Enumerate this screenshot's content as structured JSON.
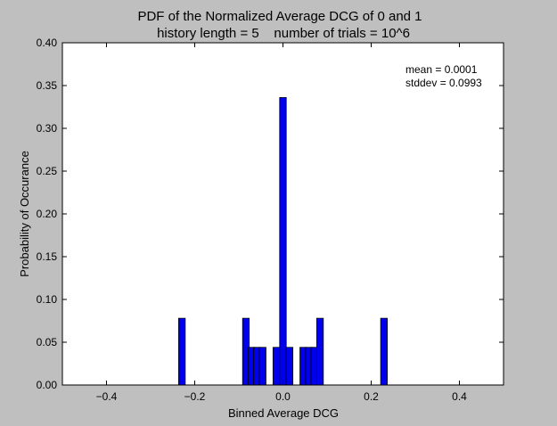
{
  "chart_data": {
    "type": "bar",
    "title": "PDF of the Normalized Average DCG of 0 and 1",
    "subtitle": "history length = 5    number of trials = 10^6",
    "xlabel": "Binned Average DCG",
    "ylabel": "Probability of Occurance",
    "xlim": [
      -0.5,
      0.5
    ],
    "ylim": [
      0.0,
      0.4
    ],
    "bin_width": 0.015,
    "x_ticks": [
      -0.4,
      -0.2,
      0.0,
      0.2,
      0.4
    ],
    "x_tick_labels": [
      "−0.4",
      "−0.2",
      "0.0",
      "0.2",
      "0.4"
    ],
    "y_ticks": [
      0.0,
      0.05,
      0.1,
      0.15,
      0.2,
      0.25,
      0.3,
      0.35,
      0.4
    ],
    "y_tick_labels": [
      "0.00",
      "0.05",
      "0.10",
      "0.15",
      "0.20",
      "0.25",
      "0.30",
      "0.35",
      "0.40"
    ],
    "grid": false,
    "bar_color": "#0000ee",
    "bar_edge_color": "#000000",
    "bins": [
      {
        "x": -0.229,
        "value": 0.078
      },
      {
        "x": -0.084,
        "value": 0.078
      },
      {
        "x": -0.071,
        "value": 0.044
      },
      {
        "x": -0.059,
        "value": 0.044
      },
      {
        "x": -0.046,
        "value": 0.044
      },
      {
        "x": -0.015,
        "value": 0.044
      },
      {
        "x": 0.0,
        "value": 0.336
      },
      {
        "x": 0.015,
        "value": 0.044
      },
      {
        "x": 0.046,
        "value": 0.044
      },
      {
        "x": 0.059,
        "value": 0.044
      },
      {
        "x": 0.071,
        "value": 0.044
      },
      {
        "x": 0.084,
        "value": 0.078
      },
      {
        "x": 0.229,
        "value": 0.078
      }
    ],
    "annotations": {
      "mean": "mean = 0.0001",
      "stddev": "stddev = 0.0993"
    }
  }
}
